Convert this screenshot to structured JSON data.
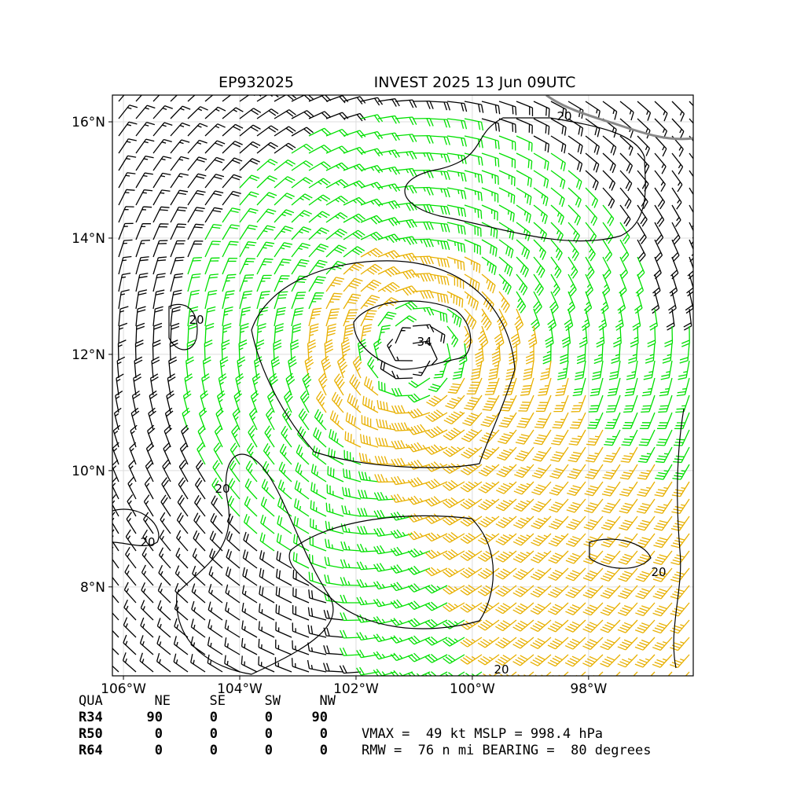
{
  "map": {
    "title_left": "EP932025",
    "title_right": "INVEST 2025 13 Jun 09UTC",
    "xlim": [
      -106.19,
      -96.2
    ],
    "ylim": [
      6.47,
      16.46
    ],
    "xticks": [
      {
        "value": -106,
        "label": "106°W"
      },
      {
        "value": -104,
        "label": "104°W"
      },
      {
        "value": -102,
        "label": "102°W"
      },
      {
        "value": -100,
        "label": "100°W"
      },
      {
        "value": -98,
        "label": "98°W"
      }
    ],
    "yticks": [
      {
        "value": 8,
        "label": "8°N"
      },
      {
        "value": 10,
        "label": "10°N"
      },
      {
        "value": 12,
        "label": "12°N"
      },
      {
        "value": 14,
        "label": "14°N"
      },
      {
        "value": 16,
        "label": "16°N"
      }
    ],
    "contour_labels": [
      "20",
      "20",
      "20",
      "20",
      "20",
      "20",
      "34"
    ],
    "table": {
      "header": [
        "QUA",
        "NE",
        "SE",
        "SW",
        "NW"
      ],
      "rows": [
        [
          "R34",
          "90",
          "0",
          "0",
          "90"
        ],
        [
          "R50",
          "0",
          "0",
          "0",
          "0"
        ],
        [
          "R64",
          "0",
          "0",
          "0",
          "0"
        ]
      ]
    },
    "info": [
      "VMAX =  49 kt MSLP = 998.4 hPa",
      "RMW =  76 n mi BEARING =  80 degrees"
    ]
  }
}
